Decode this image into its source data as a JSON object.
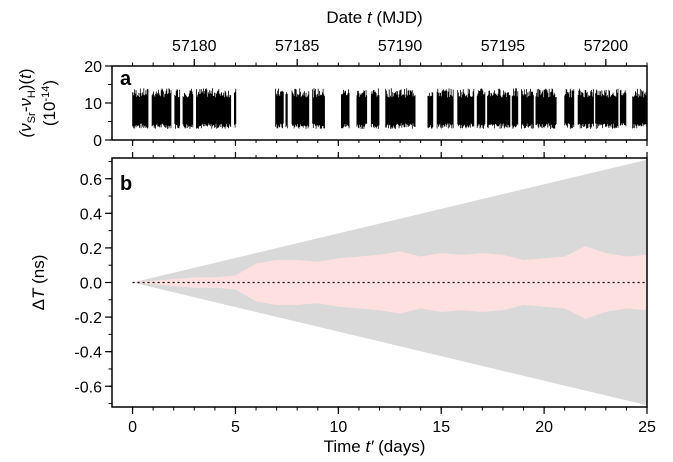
{
  "chart_data": [
    {
      "panel": "a",
      "type": "scatter",
      "top_axis": {
        "label_parts": [
          "Date ",
          "t",
          " (MJD)"
        ],
        "tick_labels": [
          "57180",
          "57185",
          "57190",
          "57195",
          "57200"
        ],
        "tick_values": [
          57180,
          57185,
          57190,
          57195,
          57200
        ]
      },
      "ylabel_parts": [
        "(ν",
        "Sr",
        "-ν",
        "H",
        ")(",
        "t",
        ")"
      ],
      "yunit_parts": [
        "(10",
        "-14",
        ")"
      ],
      "ylim": [
        0,
        20
      ],
      "y_tick_labels": [
        "0",
        "10",
        "20"
      ],
      "xlim": [
        -1,
        25
      ],
      "measurement_segments": [
        [
          0.0,
          0.75
        ],
        [
          0.95,
          1.9
        ],
        [
          2.05,
          2.3
        ],
        [
          2.45,
          2.95
        ],
        [
          3.1,
          4.8
        ],
        [
          4.95,
          5.05
        ],
        [
          6.95,
          7.35
        ],
        [
          7.45,
          7.55
        ],
        [
          7.75,
          8.6
        ],
        [
          8.75,
          9.35
        ],
        [
          10.15,
          10.55
        ],
        [
          10.9,
          11.4
        ],
        [
          11.6,
          12.0
        ],
        [
          12.3,
          13.75
        ],
        [
          14.35,
          14.6
        ],
        [
          14.8,
          15.6
        ],
        [
          15.8,
          16.6
        ],
        [
          16.75,
          17.15
        ],
        [
          17.25,
          18.35
        ],
        [
          18.45,
          18.75
        ],
        [
          18.9,
          19.5
        ],
        [
          19.6,
          20.6
        ],
        [
          21.0,
          21.45
        ],
        [
          21.65,
          22.4
        ],
        [
          22.5,
          23.6
        ],
        [
          23.7,
          24.0
        ],
        [
          24.3,
          25.0
        ]
      ],
      "data_band_ylim": [
        3,
        14
      ]
    },
    {
      "panel": "b",
      "type": "area",
      "xlabel_parts": [
        "Time ",
        "t′",
        " (days)"
      ],
      "ylabel_parts": [
        "Δ",
        "T",
        " (ns)"
      ],
      "xlim": [
        -1,
        25
      ],
      "ylim": [
        -0.72,
        0.72
      ],
      "x_tick_labels": [
        "0",
        "5",
        "10",
        "15",
        "20",
        "25"
      ],
      "x_tick_values": [
        0,
        5,
        10,
        15,
        20,
        25
      ],
      "y_tick_labels": [
        "0.6",
        "0.4",
        "0.2",
        "0.0",
        "-0.2",
        "-0.4",
        "-0.6"
      ],
      "y_tick_values": [
        0.6,
        0.4,
        0.2,
        0.0,
        -0.2,
        -0.4,
        -0.6
      ],
      "series": [
        {
          "role": "outer uncertainty envelope (gray, symmetric ±)",
          "color": "#d9d9d9",
          "x": [
            0,
            25
          ],
          "y": [
            0,
            0.71
          ]
        },
        {
          "role": "inner uncertainty envelope (pink, symmetric ±)",
          "color": "#ffe0e0",
          "x": [
            0,
            1,
            2,
            3,
            4,
            5,
            6,
            7,
            8,
            9,
            10,
            11,
            12,
            13,
            14,
            15,
            16,
            17,
            18,
            19,
            20,
            21,
            22,
            23,
            24,
            25
          ],
          "y": [
            0,
            0.01,
            0.02,
            0.03,
            0.03,
            0.04,
            0.11,
            0.13,
            0.13,
            0.12,
            0.14,
            0.15,
            0.16,
            0.18,
            0.15,
            0.17,
            0.16,
            0.17,
            0.16,
            0.13,
            0.14,
            0.15,
            0.21,
            0.17,
            0.15,
            0.16
          ]
        }
      ],
      "reference_line": {
        "y": 0.0,
        "style": "dotted",
        "x_range": [
          0,
          25
        ]
      }
    }
  ]
}
